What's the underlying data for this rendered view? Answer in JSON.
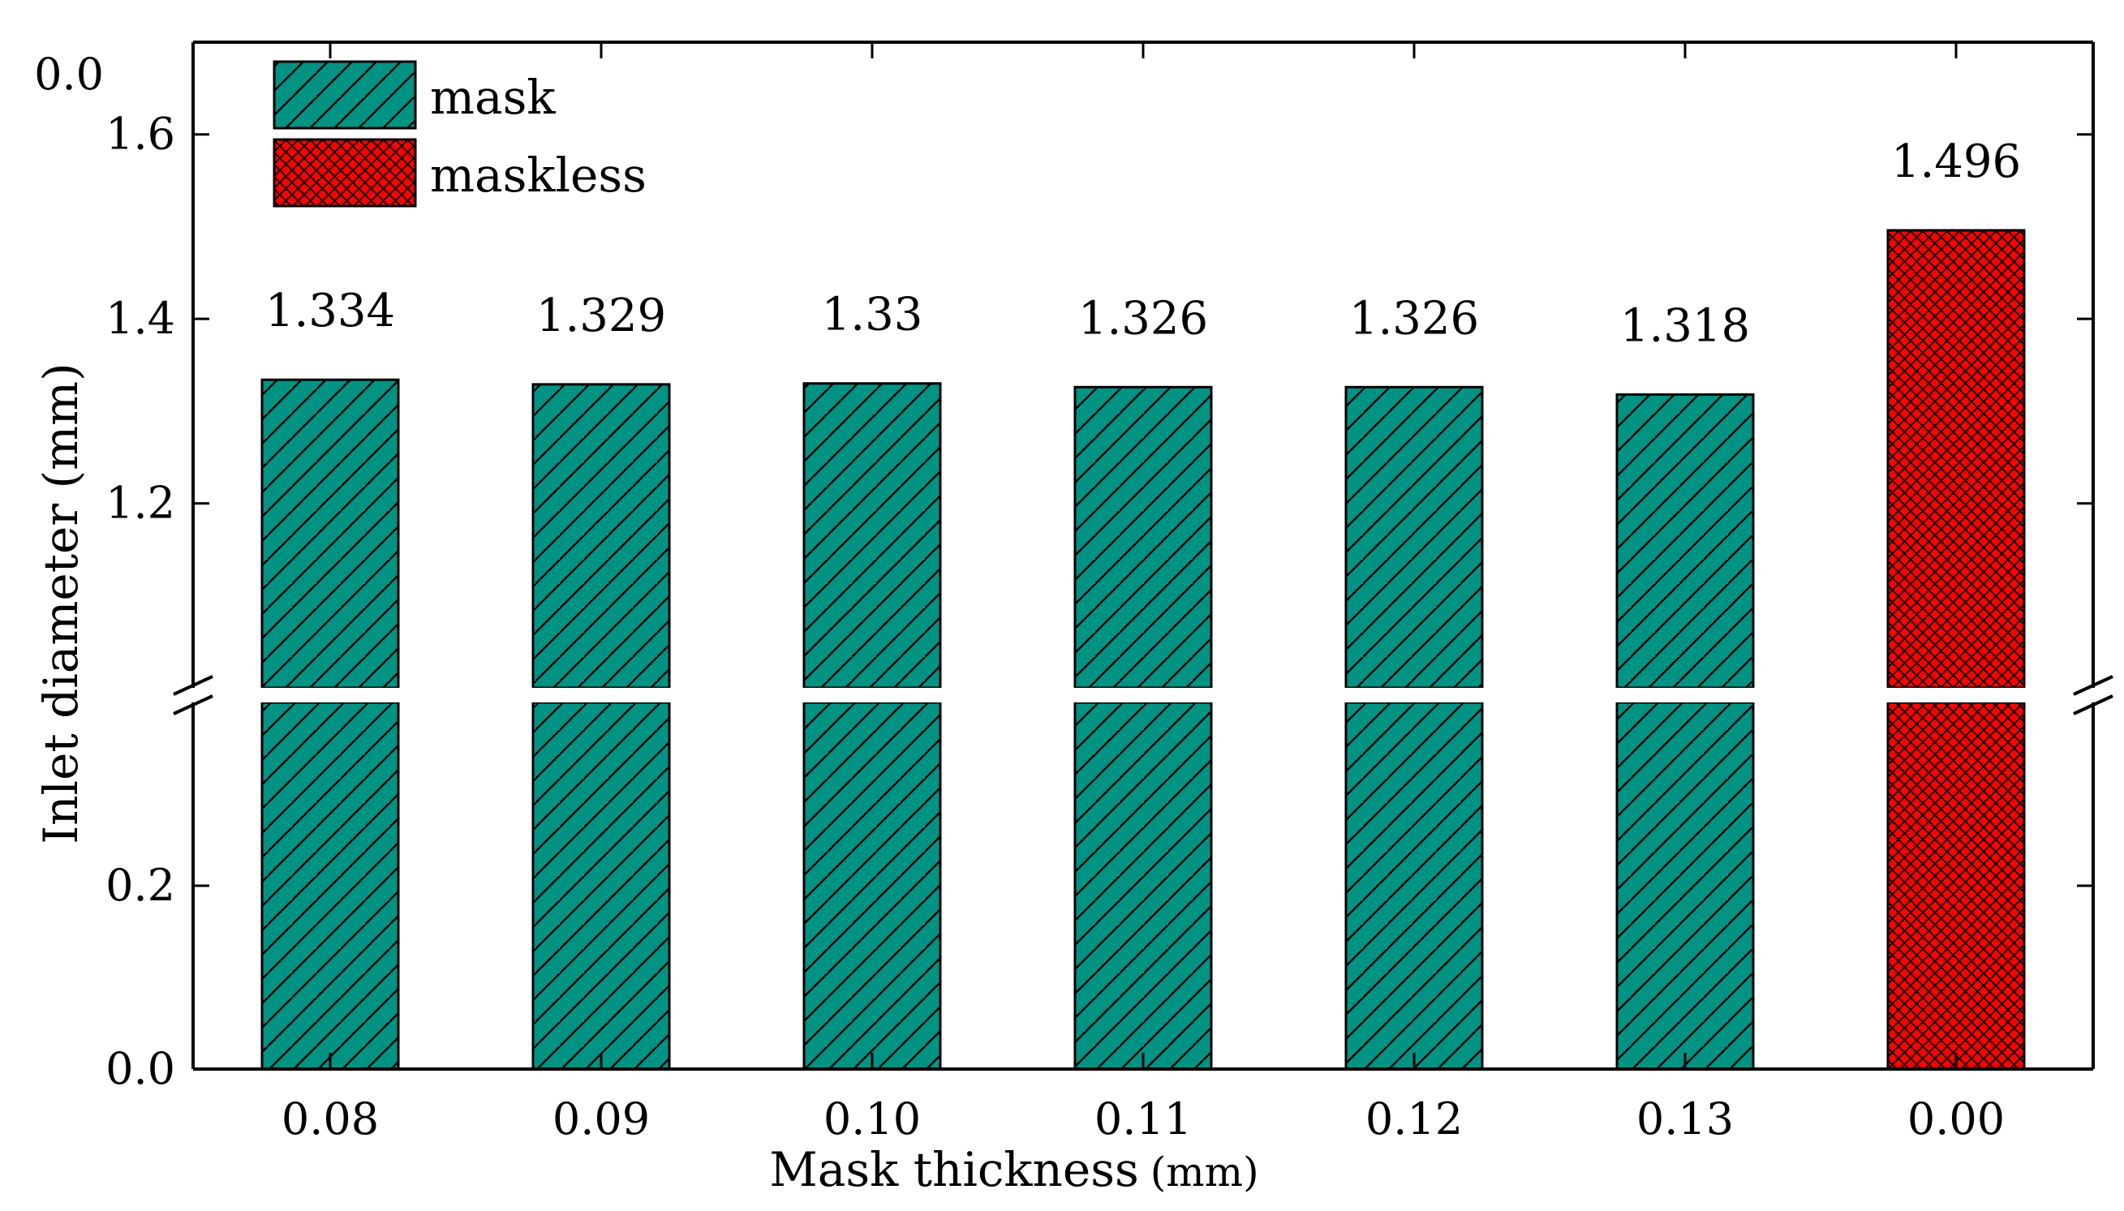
{
  "colors": {
    "mask_fill": "#009384",
    "maskless_fill": "#ff0000",
    "axis": "#000000",
    "hatch": "#000000"
  },
  "chart_data": {
    "type": "bar",
    "title": "",
    "xlabel": "Mask thickness",
    "xlabel_unit": "(mm)",
    "ylabel": "Inlet diameter (mm)",
    "categories": [
      "0.08",
      "0.09",
      "0.10",
      "0.11",
      "0.12",
      "0.13",
      "0.00"
    ],
    "series": [
      {
        "name": "mask",
        "fill": "#009384",
        "pattern": "diagonal-hatch",
        "values": [
          1.334,
          1.329,
          1.33,
          1.326,
          1.326,
          1.318,
          null
        ]
      },
      {
        "name": "maskless",
        "fill": "#ff0000",
        "pattern": "crosshatch",
        "values": [
          null,
          null,
          null,
          null,
          null,
          null,
          1.496
        ]
      }
    ],
    "data_labels": [
      "1.334",
      "1.329",
      "1.33",
      "1.326",
      "1.326",
      "1.318",
      "1.496"
    ],
    "y_axis_break": true,
    "y_lower_range": [
      0.0,
      0.4
    ],
    "y_upper_range": [
      1.0,
      1.7
    ],
    "y_lower_ticks": [
      "0.0",
      "0.2"
    ],
    "y_upper_ticks": [
      "1.2",
      "1.4",
      "1.6"
    ],
    "y_upper_extra_label": "0.0",
    "legend_position": "top-left",
    "grid": false
  }
}
